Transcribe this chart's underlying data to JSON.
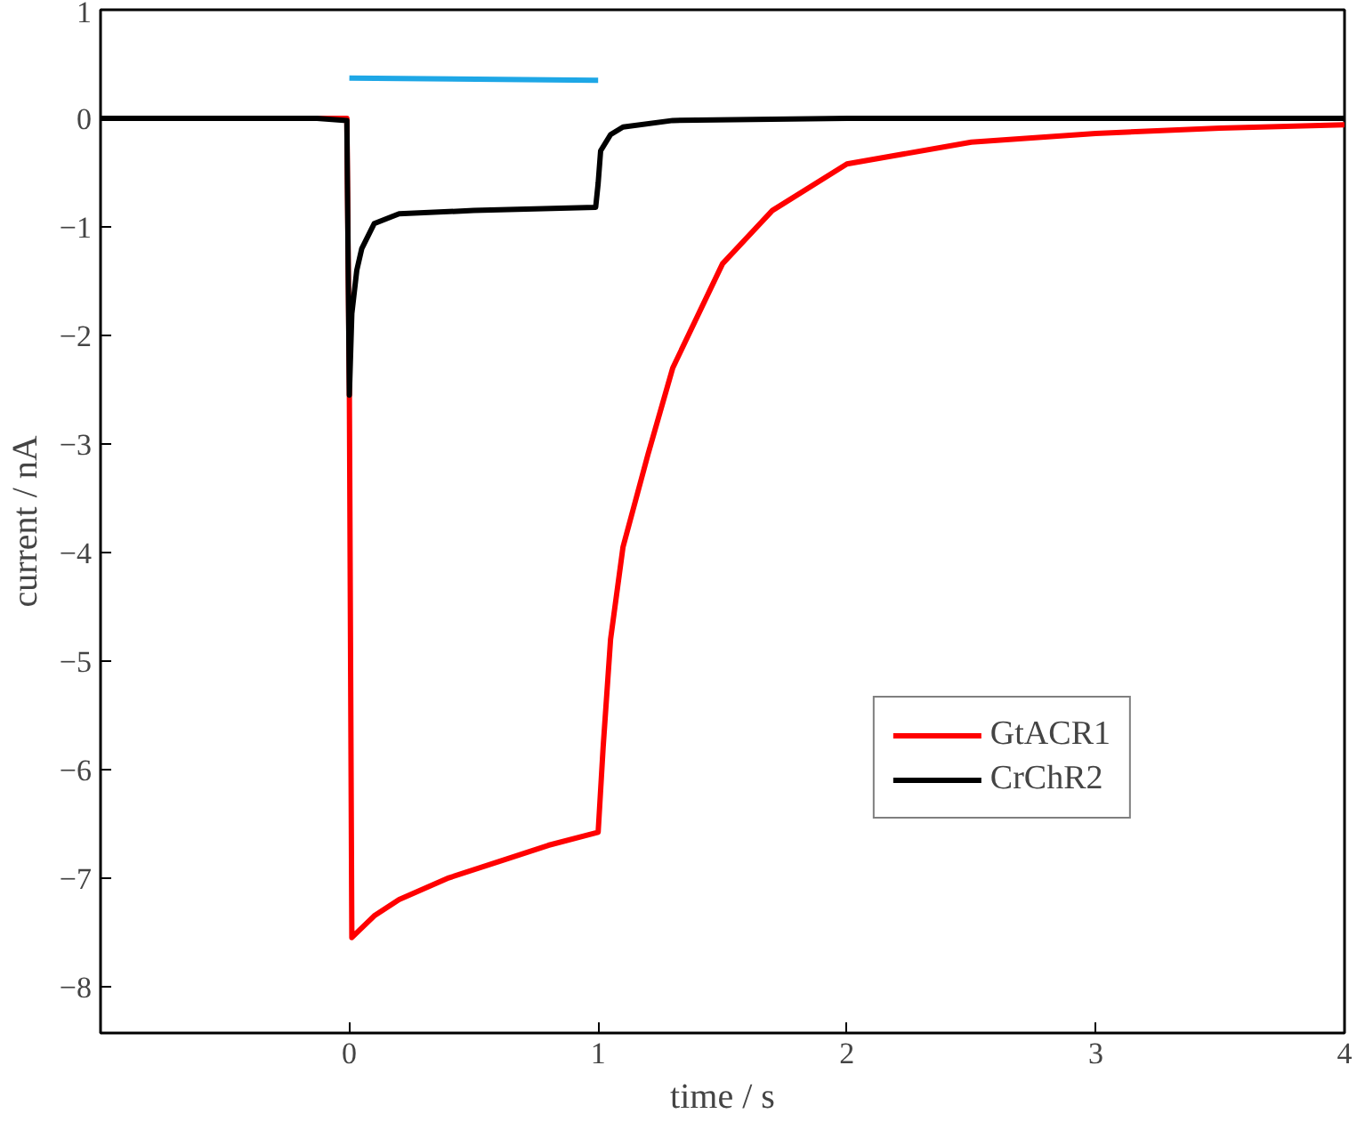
{
  "chart_data": {
    "type": "line",
    "xlabel": "time / s",
    "ylabel": "current / nA",
    "xlim": [
      -1,
      4
    ],
    "ylim": [
      -8.43,
      1
    ],
    "xticks": [
      0,
      1,
      2,
      3,
      4
    ],
    "yticks": [
      1,
      0,
      -1,
      -2,
      -3,
      -4,
      -5,
      -6,
      -7,
      -8
    ],
    "grid": false,
    "legend": "bottom right",
    "line_style": "solid",
    "series": [
      {
        "name": "GtACR1",
        "color": "#ff0000",
        "x": [
          -1,
          -0.5,
          -0.01,
          0,
          0.01,
          0.1,
          0.2,
          0.4,
          0.6,
          0.8,
          1.0,
          1.02,
          1.05,
          1.1,
          1.2,
          1.3,
          1.5,
          1.7,
          2.0,
          2.5,
          3.0,
          3.5,
          4.0
        ],
        "values": [
          0,
          0,
          0,
          -2.5,
          -7.55,
          -7.35,
          -7.2,
          -7.0,
          -6.85,
          -6.7,
          -6.58,
          -5.8,
          -4.8,
          -3.95,
          -3.1,
          -2.3,
          -1.34,
          -0.85,
          -0.42,
          -0.22,
          -0.14,
          -0.09,
          -0.06
        ]
      },
      {
        "name": "CrChR2",
        "color": "#000000",
        "x": [
          -1,
          -0.5,
          -0.13,
          -0.01,
          0,
          0.01,
          0.03,
          0.05,
          0.1,
          0.2,
          0.5,
          0.99,
          1.0,
          1.01,
          1.05,
          1.1,
          1.3,
          2,
          3,
          4
        ],
        "values": [
          0,
          0,
          0,
          -0.02,
          -2.55,
          -1.8,
          -1.4,
          -1.2,
          -0.97,
          -0.88,
          -0.85,
          -0.82,
          -0.6,
          -0.3,
          -0.15,
          -0.08,
          -0.02,
          0,
          0,
          0
        ]
      },
      {
        "color": "#1ea7e6",
        "x": [
          0,
          1
        ],
        "values": [
          0.37,
          0.35
        ]
      }
    ]
  }
}
